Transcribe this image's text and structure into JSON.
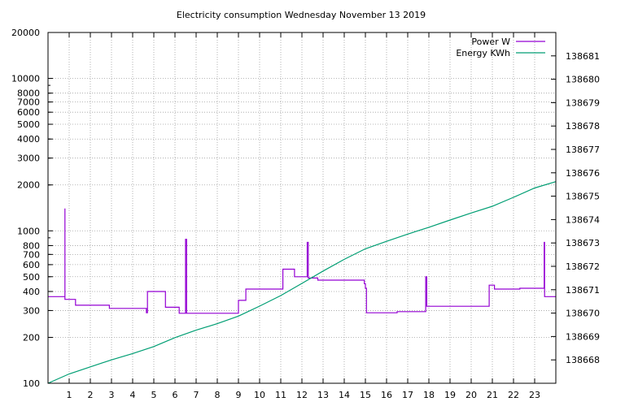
{
  "chart_data": {
    "type": "line",
    "title": "Electricity consumption Wednesday November 13 2019",
    "xlabel": "",
    "x_ticks": [
      1,
      2,
      3,
      4,
      5,
      6,
      7,
      8,
      9,
      10,
      11,
      12,
      13,
      14,
      15,
      16,
      17,
      18,
      19,
      20,
      21,
      22,
      23
    ],
    "xlim": [
      0,
      24
    ],
    "y_left": {
      "scale": "log",
      "range": [
        100,
        20000
      ],
      "ticks": [
        100,
        200,
        300,
        400,
        500,
        600,
        700,
        800,
        1000,
        2000,
        3000,
        4000,
        5000,
        6000,
        7000,
        8000,
        10000,
        20000
      ],
      "tick_labels": [
        "100",
        "200",
        "300",
        "400",
        "500",
        "600",
        "700",
        "800",
        "1000",
        "2000",
        "3000",
        "4000",
        "5000",
        "6000",
        "7000",
        "8000",
        "10000",
        "20000"
      ]
    },
    "y_right": {
      "scale": "linear",
      "range": [
        138667.0,
        138682.0
      ],
      "ticks": [
        138668,
        138669,
        138670,
        138671,
        138672,
        138673,
        138674,
        138675,
        138676,
        138677,
        138678,
        138679,
        138680,
        138681
      ],
      "tick_labels": [
        "138668",
        "138669",
        "138670",
        "138671",
        "138672",
        "138673",
        "138674",
        "138675",
        "138676",
        "138677",
        "138678",
        "138679",
        "138680",
        "138681"
      ]
    },
    "grid": true,
    "legend_position": "top-right",
    "series": [
      {
        "name": "Power W",
        "axis": "left",
        "color": "#9400d3",
        "step": true,
        "points": [
          [
            0,
            370
          ],
          [
            0.8,
            370
          ],
          [
            0.8,
            1400
          ],
          [
            0.8,
            355
          ],
          [
            1.3,
            355
          ],
          [
            1.3,
            325
          ],
          [
            2.9,
            325
          ],
          [
            2.9,
            310
          ],
          [
            4.65,
            310
          ],
          [
            4.65,
            290
          ],
          [
            4.7,
            290
          ],
          [
            4.7,
            400
          ],
          [
            5.55,
            400
          ],
          [
            5.55,
            315
          ],
          [
            6.2,
            315
          ],
          [
            6.2,
            288
          ],
          [
            6.5,
            288
          ],
          [
            6.5,
            880
          ],
          [
            6.55,
            880
          ],
          [
            6.55,
            288
          ],
          [
            9.0,
            288
          ],
          [
            9.0,
            350
          ],
          [
            9.35,
            350
          ],
          [
            9.35,
            415
          ],
          [
            11.1,
            415
          ],
          [
            11.1,
            560
          ],
          [
            11.65,
            560
          ],
          [
            11.65,
            500
          ],
          [
            12.25,
            500
          ],
          [
            12.25,
            840
          ],
          [
            12.3,
            840
          ],
          [
            12.3,
            490
          ],
          [
            12.75,
            490
          ],
          [
            12.75,
            475
          ],
          [
            14.95,
            475
          ],
          [
            14.95,
            450
          ],
          [
            15.0,
            450
          ],
          [
            15.0,
            420
          ],
          [
            15.05,
            420
          ],
          [
            15.05,
            290
          ],
          [
            16.5,
            290
          ],
          [
            16.5,
            295
          ],
          [
            17.85,
            295
          ],
          [
            17.85,
            500
          ],
          [
            17.9,
            500
          ],
          [
            17.9,
            320
          ],
          [
            20.85,
            320
          ],
          [
            20.85,
            440
          ],
          [
            21.1,
            440
          ],
          [
            21.1,
            415
          ],
          [
            22.3,
            415
          ],
          [
            22.3,
            420
          ],
          [
            23.45,
            420
          ],
          [
            23.45,
            840
          ],
          [
            23.47,
            840
          ],
          [
            23.47,
            370
          ],
          [
            24,
            370
          ]
        ]
      },
      {
        "name": "Energy KWh",
        "axis": "right",
        "color": "#009e73",
        "step": false,
        "points": [
          [
            0,
            138667.0
          ],
          [
            1,
            138667.4
          ],
          [
            2,
            138667.7
          ],
          [
            3,
            138668.0
          ],
          [
            4,
            138668.27
          ],
          [
            5,
            138668.57
          ],
          [
            6,
            138668.95
          ],
          [
            7,
            138669.27
          ],
          [
            8,
            138669.55
          ],
          [
            9,
            138669.87
          ],
          [
            10,
            138670.3
          ],
          [
            11,
            138670.75
          ],
          [
            12,
            138671.27
          ],
          [
            13,
            138671.8
          ],
          [
            14,
            138672.3
          ],
          [
            15,
            138672.75
          ],
          [
            16,
            138673.07
          ],
          [
            17,
            138673.38
          ],
          [
            18,
            138673.67
          ],
          [
            19,
            138673.98
          ],
          [
            20,
            138674.28
          ],
          [
            21,
            138674.57
          ],
          [
            22,
            138674.95
          ],
          [
            23,
            138675.35
          ],
          [
            24,
            138675.62
          ]
        ]
      }
    ]
  }
}
